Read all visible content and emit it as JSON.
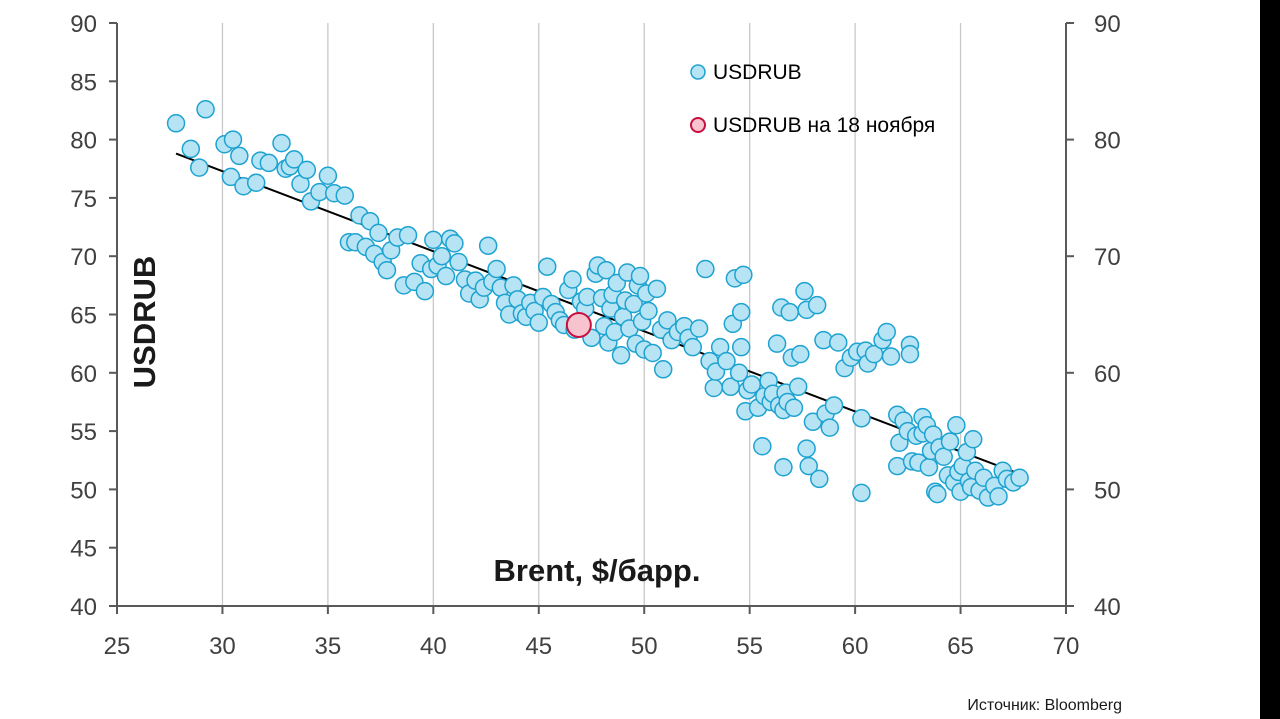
{
  "chart_data": {
    "type": "scatter",
    "xlabel": "Brent, $/барр.",
    "ylabel": "USDRUB",
    "source": "Источник: Bloomberg",
    "xlim": [
      25,
      70
    ],
    "ylim": [
      40,
      90
    ],
    "x_ticks": [
      25,
      30,
      35,
      40,
      45,
      50,
      55,
      60,
      65,
      70
    ],
    "y_ticks_left": [
      40,
      45,
      50,
      55,
      60,
      65,
      70,
      75,
      80,
      85,
      90
    ],
    "y_ticks_right": [
      40,
      50,
      60,
      70,
      80,
      90
    ],
    "grid": "vertical",
    "legend_position": "top-right",
    "colors": {
      "point_fill": "#b7e4f5",
      "point_stroke": "#1ea3d0",
      "highlight_fill": "#f6c3cf",
      "highlight_stroke": "#c8103f",
      "trend": "#000000",
      "grid": "#c8c8c8",
      "axis": "#595959"
    },
    "series": [
      {
        "name": "USDRUB",
        "points": [
          [
            27.8,
            81.4
          ],
          [
            28.5,
            79.2
          ],
          [
            28.9,
            77.6
          ],
          [
            29.2,
            82.6
          ],
          [
            30.1,
            79.6
          ],
          [
            30.5,
            80.0
          ],
          [
            30.4,
            76.8
          ],
          [
            30.8,
            78.6
          ],
          [
            31.0,
            76.0
          ],
          [
            31.6,
            76.3
          ],
          [
            31.8,
            78.2
          ],
          [
            32.2,
            78.0
          ],
          [
            32.8,
            79.7
          ],
          [
            33.0,
            77.5
          ],
          [
            33.2,
            77.7
          ],
          [
            33.4,
            78.3
          ],
          [
            33.7,
            76.2
          ],
          [
            34.0,
            77.4
          ],
          [
            34.2,
            74.7
          ],
          [
            34.6,
            75.5
          ],
          [
            35.0,
            76.9
          ],
          [
            35.3,
            75.4
          ],
          [
            35.8,
            75.2
          ],
          [
            36.0,
            71.2
          ],
          [
            36.3,
            71.2
          ],
          [
            36.5,
            73.5
          ],
          [
            36.8,
            70.8
          ],
          [
            37.0,
            73.0
          ],
          [
            37.2,
            70.2
          ],
          [
            37.4,
            72.0
          ],
          [
            37.6,
            69.5
          ],
          [
            37.8,
            68.8
          ],
          [
            38.0,
            70.5
          ],
          [
            38.3,
            71.6
          ],
          [
            38.6,
            67.5
          ],
          [
            38.8,
            71.8
          ],
          [
            39.1,
            67.8
          ],
          [
            39.4,
            69.4
          ],
          [
            39.6,
            67.0
          ],
          [
            39.9,
            68.9
          ],
          [
            40.0,
            71.4
          ],
          [
            40.2,
            69.2
          ],
          [
            40.4,
            70.0
          ],
          [
            40.6,
            68.3
          ],
          [
            40.8,
            71.5
          ],
          [
            41.0,
            71.1
          ],
          [
            41.2,
            69.5
          ],
          [
            41.5,
            68.0
          ],
          [
            41.7,
            66.8
          ],
          [
            42.0,
            67.9
          ],
          [
            42.2,
            66.3
          ],
          [
            42.4,
            67.3
          ],
          [
            42.6,
            70.9
          ],
          [
            42.8,
            67.8
          ],
          [
            43.0,
            68.9
          ],
          [
            43.2,
            67.3
          ],
          [
            43.4,
            66.0
          ],
          [
            43.6,
            65.0
          ],
          [
            43.8,
            67.5
          ],
          [
            44.0,
            66.3
          ],
          [
            44.2,
            65.1
          ],
          [
            44.4,
            64.8
          ],
          [
            44.6,
            66.0
          ],
          [
            44.8,
            65.3
          ],
          [
            45.0,
            64.3
          ],
          [
            45.2,
            66.5
          ],
          [
            45.4,
            69.1
          ],
          [
            45.6,
            65.9
          ],
          [
            45.8,
            65.2
          ],
          [
            46.0,
            64.5
          ],
          [
            46.2,
            64.1
          ],
          [
            46.4,
            67.1
          ],
          [
            46.6,
            68.0
          ],
          [
            46.7,
            63.7
          ],
          [
            47.0,
            66.1
          ],
          [
            47.2,
            65.5
          ],
          [
            47.3,
            66.5
          ],
          [
            47.5,
            63.0
          ],
          [
            47.7,
            68.5
          ],
          [
            47.8,
            69.2
          ],
          [
            48.0,
            66.4
          ],
          [
            48.1,
            64.0
          ],
          [
            48.2,
            68.8
          ],
          [
            48.3,
            62.6
          ],
          [
            48.4,
            65.5
          ],
          [
            48.5,
            66.7
          ],
          [
            48.6,
            63.5
          ],
          [
            48.7,
            67.7
          ],
          [
            48.9,
            61.5
          ],
          [
            49.0,
            64.8
          ],
          [
            49.1,
            66.2
          ],
          [
            49.2,
            68.6
          ],
          [
            49.3,
            63.8
          ],
          [
            49.5,
            65.9
          ],
          [
            49.6,
            62.5
          ],
          [
            49.7,
            67.5
          ],
          [
            49.8,
            68.3
          ],
          [
            49.9,
            64.4
          ],
          [
            50.0,
            62.0
          ],
          [
            50.1,
            66.8
          ],
          [
            50.2,
            65.3
          ],
          [
            50.4,
            61.7
          ],
          [
            50.6,
            67.2
          ],
          [
            50.8,
            63.7
          ],
          [
            50.9,
            60.3
          ],
          [
            51.1,
            64.5
          ],
          [
            51.3,
            62.8
          ],
          [
            51.6,
            63.5
          ],
          [
            51.9,
            64.0
          ],
          [
            52.1,
            63.0
          ],
          [
            52.3,
            62.2
          ],
          [
            52.6,
            63.8
          ],
          [
            52.9,
            68.9
          ],
          [
            53.1,
            61.0
          ],
          [
            53.3,
            58.7
          ],
          [
            53.4,
            60.1
          ],
          [
            53.6,
            62.2
          ],
          [
            53.9,
            61.0
          ],
          [
            54.1,
            58.8
          ],
          [
            54.2,
            64.2
          ],
          [
            54.3,
            68.1
          ],
          [
            54.5,
            60.0
          ],
          [
            54.6,
            62.2
          ],
          [
            54.6,
            65.2
          ],
          [
            54.7,
            68.4
          ],
          [
            54.8,
            56.7
          ],
          [
            54.9,
            58.5
          ],
          [
            55.1,
            59.0
          ],
          [
            55.4,
            57.0
          ],
          [
            55.6,
            53.7
          ],
          [
            55.7,
            58.0
          ],
          [
            55.9,
            59.3
          ],
          [
            56.0,
            57.5
          ],
          [
            56.1,
            58.2
          ],
          [
            56.3,
            62.5
          ],
          [
            56.4,
            57.2
          ],
          [
            56.5,
            65.6
          ],
          [
            56.6,
            56.8
          ],
          [
            56.6,
            51.9
          ],
          [
            56.7,
            58.3
          ],
          [
            56.8,
            57.5
          ],
          [
            56.9,
            65.2
          ],
          [
            57.0,
            61.3
          ],
          [
            57.1,
            57.0
          ],
          [
            57.3,
            58.8
          ],
          [
            57.4,
            61.6
          ],
          [
            57.6,
            67.0
          ],
          [
            57.7,
            65.4
          ],
          [
            57.7,
            53.5
          ],
          [
            57.8,
            52.0
          ],
          [
            58.0,
            55.8
          ],
          [
            58.2,
            65.8
          ],
          [
            58.3,
            50.9
          ],
          [
            58.5,
            62.8
          ],
          [
            58.6,
            56.5
          ],
          [
            58.8,
            55.3
          ],
          [
            59.0,
            57.2
          ],
          [
            59.2,
            62.6
          ],
          [
            59.5,
            60.4
          ],
          [
            59.8,
            61.3
          ],
          [
            60.1,
            61.8
          ],
          [
            60.3,
            56.1
          ],
          [
            60.3,
            49.7
          ],
          [
            60.5,
            61.9
          ],
          [
            60.6,
            60.8
          ],
          [
            60.9,
            61.6
          ],
          [
            61.3,
            62.8
          ],
          [
            61.5,
            63.5
          ],
          [
            61.7,
            61.4
          ],
          [
            62.0,
            56.4
          ],
          [
            62.0,
            52.0
          ],
          [
            62.1,
            54.0
          ],
          [
            62.3,
            55.9
          ],
          [
            62.5,
            55.0
          ],
          [
            62.6,
            62.4
          ],
          [
            62.7,
            52.4
          ],
          [
            62.6,
            61.6
          ],
          [
            62.9,
            54.6
          ],
          [
            63.0,
            52.3
          ],
          [
            63.2,
            56.2
          ],
          [
            63.2,
            54.8
          ],
          [
            63.4,
            55.5
          ],
          [
            63.5,
            51.9
          ],
          [
            63.6,
            53.3
          ],
          [
            63.7,
            54.7
          ],
          [
            63.8,
            49.8
          ],
          [
            63.9,
            49.6
          ],
          [
            64.0,
            53.6
          ],
          [
            64.2,
            52.8
          ],
          [
            64.4,
            51.2
          ],
          [
            64.5,
            54.1
          ],
          [
            64.7,
            50.6
          ],
          [
            64.8,
            55.5
          ],
          [
            64.9,
            51.5
          ],
          [
            65.0,
            49.8
          ],
          [
            65.1,
            52.0
          ],
          [
            65.3,
            53.2
          ],
          [
            65.4,
            50.7
          ],
          [
            65.5,
            50.2
          ],
          [
            65.6,
            54.3
          ],
          [
            65.7,
            51.6
          ],
          [
            65.9,
            49.9
          ],
          [
            66.1,
            51.0
          ],
          [
            66.3,
            49.3
          ],
          [
            66.6,
            50.3
          ],
          [
            66.8,
            49.4
          ],
          [
            67.0,
            51.6
          ],
          [
            67.2,
            50.9
          ],
          [
            67.5,
            50.6
          ],
          [
            67.8,
            51.0
          ]
        ]
      },
      {
        "name": "USDRUB на 18 ноября",
        "points": [
          [
            46.9,
            64.1
          ]
        ]
      }
    ],
    "trendline": {
      "x": [
        27.8,
        67.7
      ],
      "y": [
        78.8,
        51.4
      ]
    }
  }
}
